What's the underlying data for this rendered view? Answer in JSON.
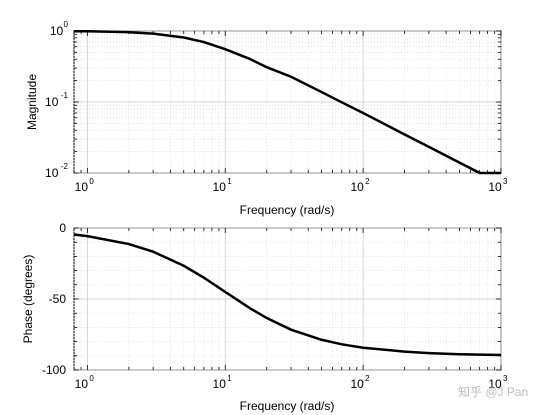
{
  "chart_data": [
    {
      "type": "line",
      "xscale": "log",
      "yscale": "log",
      "xlim": [
        0.8,
        1000
      ],
      "ylim": [
        0.01,
        1
      ],
      "x_ticks": [
        {
          "base": "10",
          "exp": "0"
        },
        {
          "base": "10",
          "exp": "1"
        },
        {
          "base": "10",
          "exp": "2"
        },
        {
          "base": "10",
          "exp": "3"
        }
      ],
      "y_ticks": [
        {
          "base": "10",
          "exp": "0"
        },
        {
          "base": "10",
          "exp": "-1"
        },
        {
          "base": "10",
          "exp": "-2"
        }
      ],
      "xlabel": "Frequency (rad/s)",
      "ylabel": "Magnitude",
      "grid": true,
      "series": [
        {
          "x": [
            0.8,
            1,
            2,
            3,
            5,
            7,
            10,
            15,
            20,
            30,
            50,
            70,
            100,
            200,
            300,
            500,
            700,
            1000
          ],
          "y": [
            0.993,
            0.99,
            0.962,
            0.919,
            0.81,
            0.698,
            0.555,
            0.406,
            0.309,
            0.227,
            0.138,
            0.099,
            0.07,
            0.0349,
            0.0233,
            0.014,
            0.01,
            0.01
          ],
          "color": "#000000"
        }
      ]
    },
    {
      "type": "line",
      "xscale": "log",
      "yscale": "linear",
      "xlim": [
        0.8,
        1000
      ],
      "ylim": [
        -100,
        0
      ],
      "x_ticks": [
        {
          "base": "10",
          "exp": "0"
        },
        {
          "base": "10",
          "exp": "1"
        },
        {
          "base": "10",
          "exp": "2"
        },
        {
          "base": "10",
          "exp": "3"
        }
      ],
      "y_ticks": [
        "0",
        "-50",
        "-100"
      ],
      "xlabel": "Frequency (rad/s)",
      "ylabel": "Phase (degrees)",
      "grid": true,
      "series": [
        {
          "x": [
            0.8,
            1,
            2,
            3,
            5,
            7,
            10,
            15,
            20,
            30,
            50,
            70,
            100,
            200,
            300,
            500,
            700,
            1000
          ],
          "y": [
            -4.6,
            -5.7,
            -11.3,
            -16.7,
            -26.6,
            -35.0,
            -45.0,
            -56.3,
            -63.4,
            -71.6,
            -78.7,
            -81.9,
            -84.3,
            -87.1,
            -88.1,
            -88.9,
            -89.2,
            -89.4
          ],
          "color": "#000000"
        }
      ]
    }
  ],
  "watermark": "知乎 @J Pan"
}
